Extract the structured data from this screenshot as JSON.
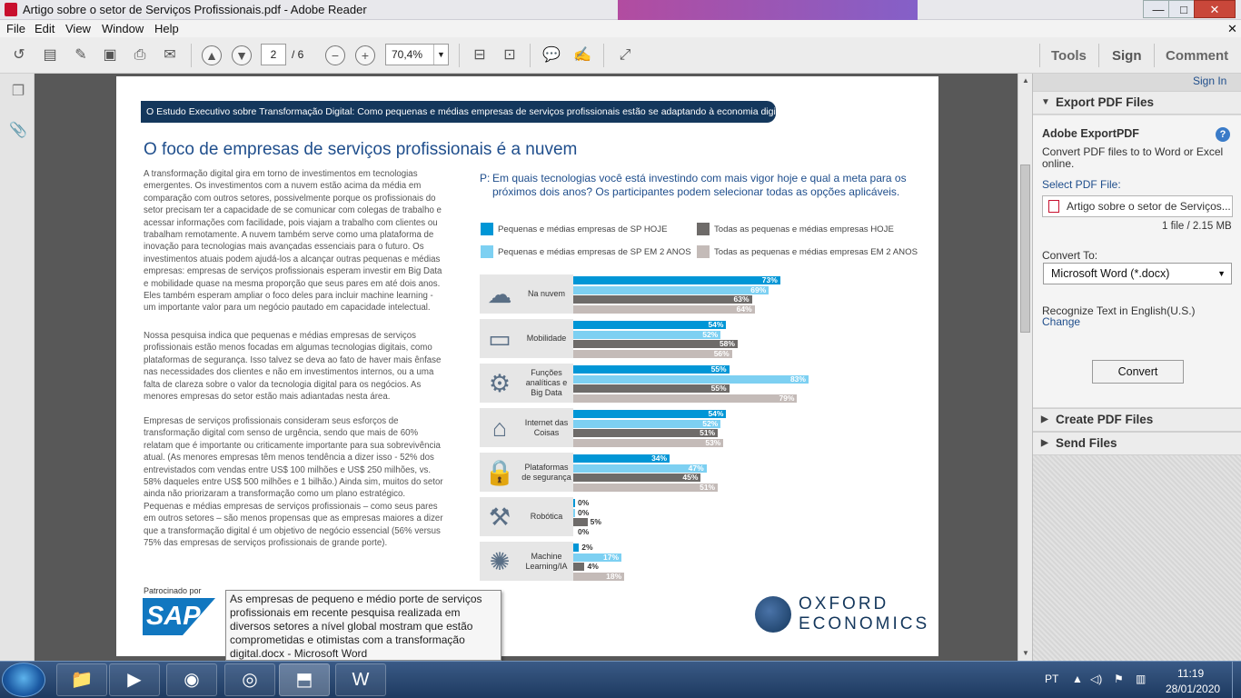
{
  "window": {
    "title": "Artigo sobre o setor de Serviços Profissionais.pdf - Adobe Reader",
    "min": "—",
    "max": "□",
    "close": "✕"
  },
  "menu": [
    "File",
    "Edit",
    "View",
    "Window",
    "Help"
  ],
  "menu_close": "✕",
  "toolbar": {
    "page_current": "2",
    "page_total": "/ 6",
    "zoom": "70,4%",
    "tools": "Tools",
    "sign": "Sign",
    "comment": "Comment"
  },
  "pdf": {
    "banner": "O Estudo Executivo sobre Transformação Digital: Como pequenas e médias empresas de serviços profissionais estão se adaptando à economia digital",
    "heading": "O foco de empresas de serviços profissionais é a nuvem",
    "para1": "A transformação digital gira em torno de investimentos em tecnologias emergentes. Os investimentos com a nuvem estão acima da média em comparação com outros setores, possivelmente porque os profissionais do setor precisam ter a capacidade de se comunicar com colegas de trabalho e acessar informações com facilidade, pois viajam a trabalho com clientes ou trabalham remotamente. A nuvem também serve como uma plataforma de inovação para tecnologias mais avançadas essenciais para o futuro. Os investimentos atuais podem ajudá-los a alcançar outras pequenas e médias empresas: empresas de serviços profissionais esperam investir em Big Data e mobilidade quase na mesma proporção que seus pares em até dois anos. Eles também esperam ampliar o foco deles para incluir machine learning - um importante valor para um negócio pautado em capacidade intelectual.",
    "para2": "Nossa pesquisa indica que pequenas e médias empresas de serviços profissionais estão menos focadas em algumas tecnologias digitais, como plataformas de segurança. Isso talvez se deva ao fato de haver mais ênfase nas necessidades dos clientes e não em investimentos internos, ou a uma falta de clareza sobre o valor da tecnologia digital para os negócios. As menores empresas do setor estão mais adiantadas nesta área.",
    "para3": "Empresas de serviços profissionais consideram seus esforços de transformação digital com senso de urgência, sendo que mais de 60% relatam que é importante ou criticamente importante para sua sobrevivência atual. (As menores empresas têm menos tendência a dizer isso - 52% dos entrevistados com vendas entre US$ 100 milhões e US$ 250 milhões, vs. 58% daqueles entre US$ 500 milhões e 1 bilhão.) Ainda sim, muitos do setor ainda não priorizaram a transformação como um plano estratégico. Pequenas e médias empresas de serviços profissionais – como seus pares em outros setores – são menos propensas que as empresas maiores a dizer que a transformação digital é um objetivo de negócio essencial (56% versus 75% das empresas de serviços profissionais de grande porte).",
    "question_prefix": "P:",
    "question": "Em quais tecnologias você está investindo com mais vigor hoje e qual a meta para os próximos dois anos? Os participantes podem selecionar todas as opções aplicáveis.",
    "sponsor_label": "Patrocinado por",
    "sap": "SAP",
    "oxford_line1": "OXFORD",
    "oxford_line2": "ECONOMICS"
  },
  "chart_data": {
    "type": "bar",
    "orientation": "horizontal",
    "categories": [
      "Na nuvem",
      "Mobilidade",
      "Funções analíticas e Big Data",
      "Internet das Coisas",
      "Plataformas de segurança",
      "Robótica",
      "Machine Learning/IA"
    ],
    "category_icons": [
      "cloud-icon",
      "mobile-devices-icon",
      "analytics-icon",
      "iot-icon",
      "security-lock-icon",
      "robot-arm-icon",
      "brain-icon"
    ],
    "series": [
      {
        "name": "Pequenas e médias empresas de SP HOJE",
        "color": "#0096d6",
        "values": [
          73,
          54,
          55,
          54,
          34,
          0,
          2
        ]
      },
      {
        "name": "Pequenas e médias empresas de SP EM 2 ANOS",
        "color": "#7dd0f2",
        "values": [
          69,
          52,
          83,
          52,
          47,
          0,
          17
        ]
      },
      {
        "name": "Todas as pequenas e médias empresas HOJE",
        "color": "#6e6b69",
        "values": [
          63,
          58,
          55,
          51,
          45,
          5,
          4
        ]
      },
      {
        "name": "Todas as pequenas e médias empresas EM 2 ANOS",
        "color": "#c4bbb8",
        "values": [
          64,
          56,
          79,
          53,
          51,
          0,
          18
        ]
      }
    ],
    "value_labels": [
      [
        "73%",
        "54%",
        "55%",
        "54%",
        "34%",
        "0%",
        "2%"
      ],
      [
        "69%",
        "52%",
        "83%",
        "52%",
        "47%",
        "0%",
        "17%"
      ],
      [
        "63%",
        "58%",
        "55%",
        "51%",
        "45%",
        "5%",
        "4%"
      ],
      [
        "64%",
        "56%",
        "79%",
        "53%",
        "51%",
        "0%",
        "18%"
      ]
    ],
    "xlim": [
      0,
      100
    ],
    "legend_position": "top"
  },
  "tooltip": "As empresas de pequeno e médio porte de serviços profissionais em recente pesquisa realizada em diversos setores a nível global mostram que estão comprometidas e otimistas com a transformação digital.docx - Microsoft Word",
  "right_panel": {
    "sign_in": "Sign In",
    "export_title": "Export PDF Files",
    "adobe_export": "Adobe ExportPDF",
    "help": "?",
    "desc_line1": "Convert PDF files to to Word or Excel",
    "desc_line2": "online.",
    "select_label": "Select PDF File:",
    "file_name": "Artigo sobre o setor de Serviços...",
    "file_info": "1 file / 2.15 MB",
    "convert_to_label": "Convert To:",
    "format": "Microsoft Word (*.docx)",
    "recognize": "Recognize Text in English(U.S.)",
    "change": "Change",
    "convert_btn": "Convert",
    "create_title": "Create PDF Files",
    "send_title": "Send Files"
  },
  "taskbar": {
    "lang": "PT",
    "time": "11:19",
    "date": "28/01/2020"
  }
}
